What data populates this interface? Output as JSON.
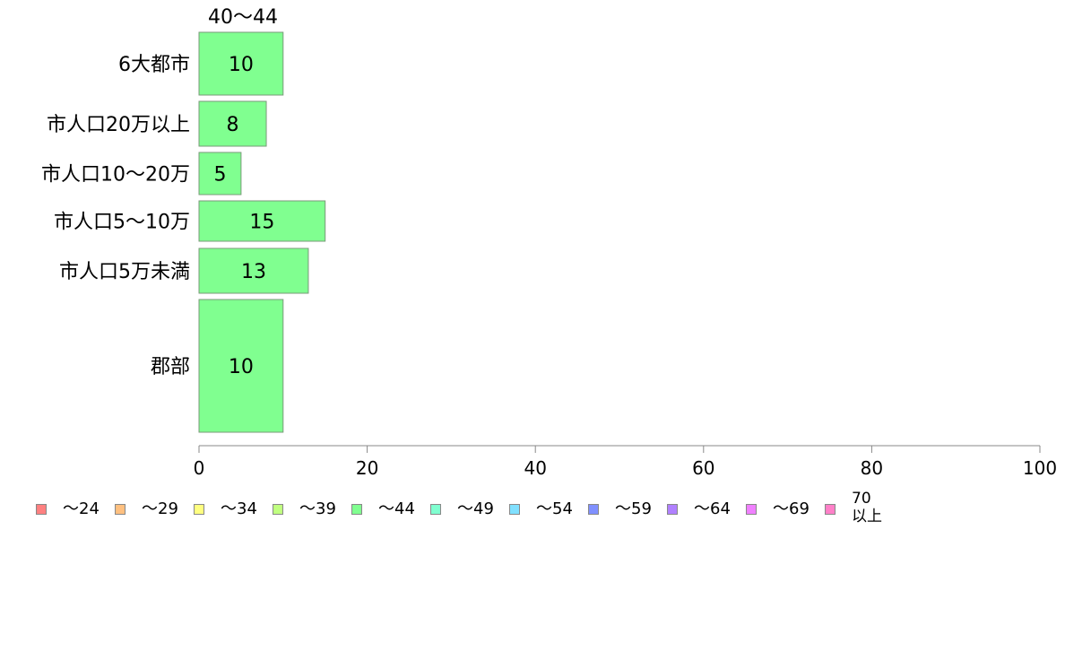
{
  "chart_data": {
    "type": "bar",
    "orientation": "horizontal",
    "stacked": true,
    "title": "",
    "xlabel": "",
    "ylabel": "",
    "xlim": [
      0,
      100
    ],
    "x_ticks": [
      "0",
      "20",
      "40",
      "60",
      "80",
      "100"
    ],
    "categories": [
      "6大都市",
      "市人口20万以上",
      "市人口10〜20万",
      "市人口5〜10万",
      "市人口5万未満",
      "郡部"
    ],
    "visible_series": "40〜44",
    "series": [
      {
        "name": "〜24",
        "color": "#ff8080",
        "values": [
          0,
          0,
          0,
          0,
          0,
          0
        ]
      },
      {
        "name": "〜29",
        "color": "#ffc080",
        "values": [
          0,
          0,
          0,
          0,
          0,
          0
        ]
      },
      {
        "name": "〜34",
        "color": "#ffff80",
        "values": [
          0,
          0,
          0,
          0,
          0,
          0
        ]
      },
      {
        "name": "〜39",
        "color": "#c0ff80",
        "values": [
          0,
          0,
          0,
          0,
          0,
          0
        ]
      },
      {
        "name": "〜44",
        "color": "#80ff90",
        "values": [
          10,
          8,
          5,
          15,
          13,
          10
        ]
      },
      {
        "name": "〜49",
        "color": "#80ffd0",
        "values": [
          0,
          0,
          0,
          0,
          0,
          0
        ]
      },
      {
        "name": "〜54",
        "color": "#80e0ff",
        "values": [
          0,
          0,
          0,
          0,
          0,
          0
        ]
      },
      {
        "name": "〜59",
        "color": "#8090ff",
        "values": [
          0,
          0,
          0,
          0,
          0,
          0
        ]
      },
      {
        "name": "〜64",
        "color": "#b080ff",
        "values": [
          0,
          0,
          0,
          0,
          0,
          0
        ]
      },
      {
        "name": "〜69",
        "color": "#f080ff",
        "values": [
          0,
          0,
          0,
          0,
          0,
          0
        ]
      },
      {
        "name": "70\n以上",
        "color": "#ff80c8",
        "values": [
          0,
          0,
          0,
          0,
          0,
          0
        ]
      }
    ],
    "bar_labels": [
      "10",
      "8",
      "5",
      "15",
      "13",
      "10"
    ],
    "column_label": "40〜44",
    "grid": false,
    "legend_position": "bottom"
  }
}
